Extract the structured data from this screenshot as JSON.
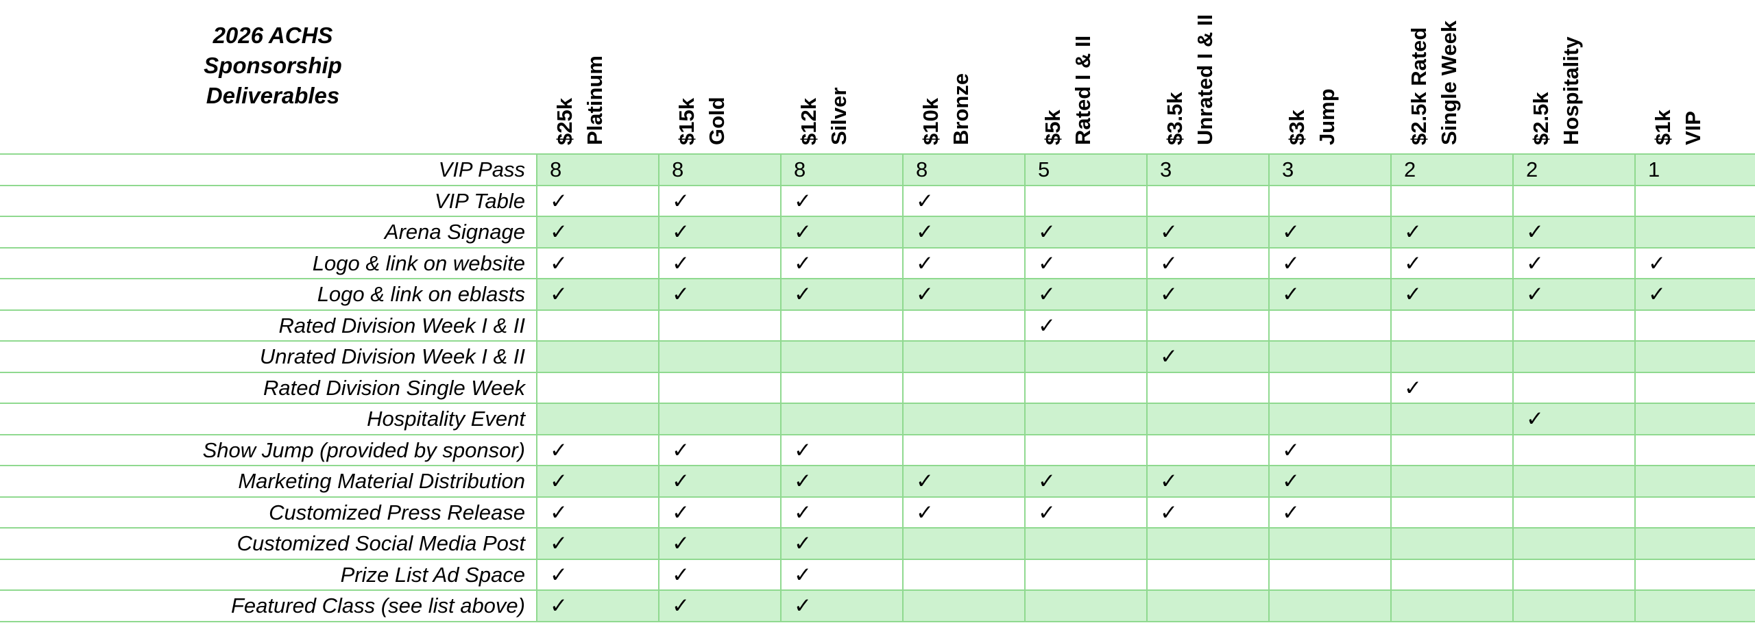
{
  "title_lines": [
    "2026 ACHS",
    "Sponsorship",
    "Deliverables"
  ],
  "check_glyph": "✓",
  "colors": {
    "grid": "#8fd98f",
    "shade": "#cdf2cf"
  },
  "columns": [
    {
      "line1": "$25k",
      "line2": "Platinum"
    },
    {
      "line1": "$15k",
      "line2": "Gold"
    },
    {
      "line1": "$12k",
      "line2": "Silver"
    },
    {
      "line1": "$10k",
      "line2": "Bronze"
    },
    {
      "line1": "$5k",
      "line2": "Rated I & II"
    },
    {
      "line1": "$3.5k",
      "line2": "Unrated I & II"
    },
    {
      "line1": "$3k",
      "line2": "Jump"
    },
    {
      "line1": "$2.5k Rated",
      "line2": "Single Week"
    },
    {
      "line1": "$2.5k",
      "line2": "Hospitality"
    },
    {
      "line1": "$1k",
      "line2": "VIP"
    }
  ],
  "rows": [
    {
      "label": "VIP Pass",
      "values": [
        "8",
        "8",
        "8",
        "8",
        "5",
        "3",
        "3",
        "2",
        "2",
        "1"
      ]
    },
    {
      "label": "VIP Table",
      "values": [
        "✓",
        "✓",
        "✓",
        "✓",
        "",
        "",
        "",
        "",
        "",
        ""
      ]
    },
    {
      "label": "Arena Signage",
      "values": [
        "✓",
        "✓",
        "✓",
        "✓",
        "✓",
        "✓",
        "✓",
        "✓",
        "✓",
        ""
      ]
    },
    {
      "label": "Logo & link on website",
      "values": [
        "✓",
        "✓",
        "✓",
        "✓",
        "✓",
        "✓",
        "✓",
        "✓",
        "✓",
        "✓"
      ]
    },
    {
      "label": "Logo & link on eblasts",
      "values": [
        "✓",
        "✓",
        "✓",
        "✓",
        "✓",
        "✓",
        "✓",
        "✓",
        "✓",
        "✓"
      ]
    },
    {
      "label": "Rated Division Week I & II",
      "values": [
        "",
        "",
        "",
        "",
        "✓",
        "",
        "",
        "",
        "",
        ""
      ]
    },
    {
      "label": "Unrated Division Week I & II",
      "values": [
        "",
        "",
        "",
        "",
        "",
        "✓",
        "",
        "",
        "",
        ""
      ]
    },
    {
      "label": "Rated Division Single Week",
      "values": [
        "",
        "",
        "",
        "",
        "",
        "",
        "",
        "✓",
        "",
        ""
      ]
    },
    {
      "label": "Hospitality Event",
      "values": [
        "",
        "",
        "",
        "",
        "",
        "",
        "",
        "",
        "✓",
        ""
      ]
    },
    {
      "label": "Show Jump (provided by sponsor)",
      "values": [
        "✓",
        "✓",
        "✓",
        "",
        "",
        "",
        "✓",
        "",
        "",
        ""
      ]
    },
    {
      "label": "Marketing Material Distribution",
      "values": [
        "✓",
        "✓",
        "✓",
        "✓",
        "✓",
        "✓",
        "✓",
        "",
        "",
        ""
      ]
    },
    {
      "label": "Customized Press Release",
      "values": [
        "✓",
        "✓",
        "✓",
        "✓",
        "✓",
        "✓",
        "✓",
        "",
        "",
        ""
      ]
    },
    {
      "label": "Customized Social Media Post",
      "values": [
        "✓",
        "✓",
        "✓",
        "",
        "",
        "",
        "",
        "",
        "",
        ""
      ]
    },
    {
      "label": "Prize List Ad Space",
      "values": [
        "✓",
        "✓",
        "✓",
        "",
        "",
        "",
        "",
        "",
        "",
        ""
      ]
    },
    {
      "label": "Featured Class (see list above)",
      "values": [
        "✓",
        "✓",
        "✓",
        "",
        "",
        "",
        "",
        "",
        "",
        ""
      ]
    }
  ]
}
